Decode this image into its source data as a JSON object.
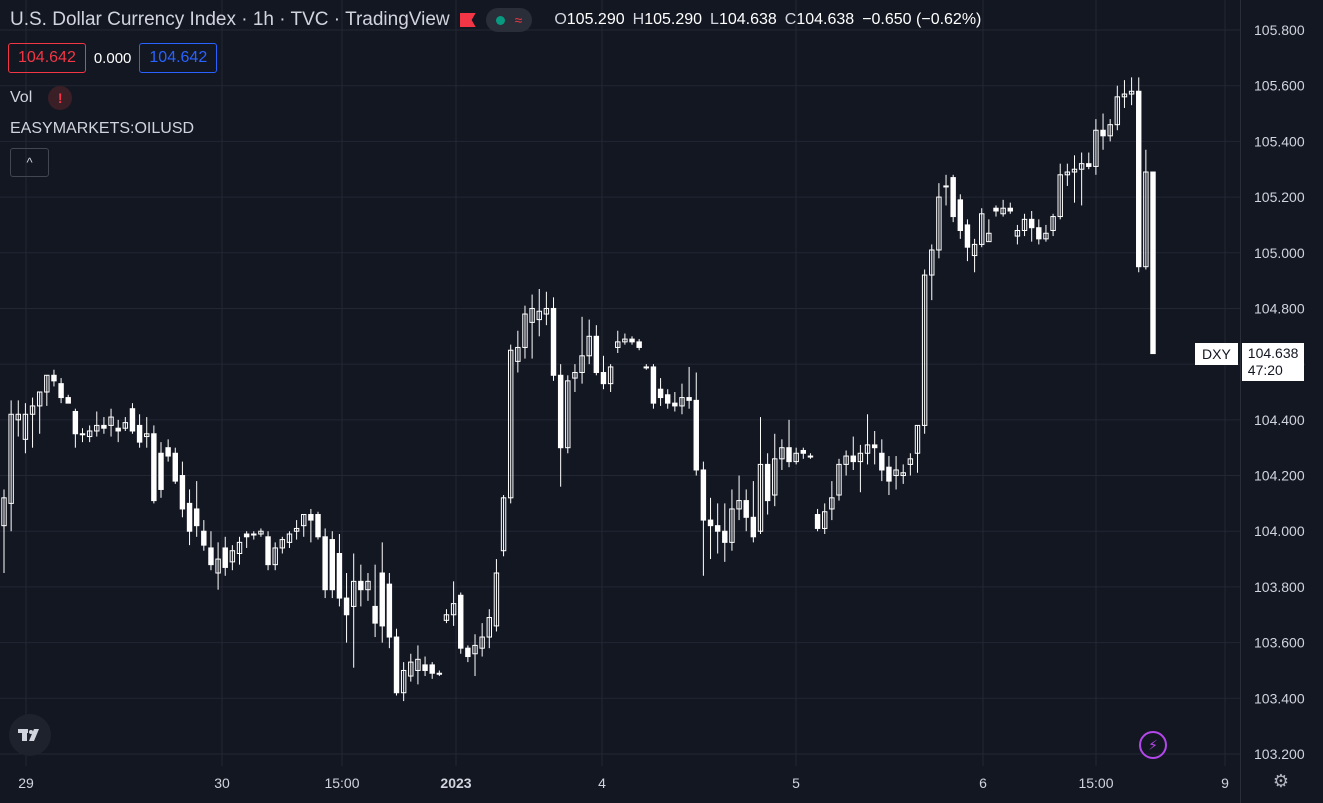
{
  "legend": {
    "title": "U.S. Dollar Currency Index · 1h · TVC · TradingView",
    "open_label": "O",
    "open": "105.290",
    "high_label": "H",
    "high": "105.290",
    "low_label": "L",
    "low": "104.638",
    "close_label": "C",
    "close": "104.638",
    "change": "−0.650 (−0.62%)"
  },
  "quote": {
    "bid": "104.642",
    "spread": "0.000",
    "ask": "104.642"
  },
  "indicators": {
    "volume_label": "Vol",
    "warning_symbol": "!",
    "compare_symbol": "EASYMARKETS:OILUSD",
    "collapse_symbol": "^"
  },
  "price_tag": {
    "symbol": "DXY",
    "price": "104.638",
    "countdown": "47:20"
  },
  "icons": {
    "logo": "tradingview-logo-icon",
    "bolt": "lightning-icon",
    "settings": "gear-icon",
    "flag": "flag-icon"
  },
  "colors": {
    "background": "#131722",
    "up": "#ffffff",
    "down": "#ffffff",
    "bid": "#f23645",
    "ask": "#2962ff",
    "grid": "#232733"
  },
  "chart_data": {
    "type": "candlestick",
    "ylim": [
      103.15,
      105.9
    ],
    "y_ticks": [
      "105.800",
      "105.600",
      "105.400",
      "105.200",
      "105.000",
      "104.800",
      "104.600",
      "104.400",
      "104.200",
      "104.000",
      "103.800",
      "103.600",
      "103.400",
      "103.200"
    ],
    "x_ticks": [
      "29",
      "30",
      "15:00",
      "2023",
      "4",
      "5",
      "6",
      "15:00",
      "9"
    ],
    "candles": [
      {
        "o": 104.02,
        "h": 104.15,
        "l": 103.85,
        "c": 104.12
      },
      {
        "o": 104.1,
        "h": 104.47,
        "l": 104.0,
        "c": 104.42
      },
      {
        "o": 104.4,
        "h": 104.47,
        "l": 104.34,
        "c": 104.42
      },
      {
        "o": 104.33,
        "h": 104.46,
        "l": 104.28,
        "c": 104.42
      },
      {
        "o": 104.42,
        "h": 104.48,
        "l": 104.3,
        "c": 104.45
      },
      {
        "o": 104.45,
        "h": 104.5,
        "l": 104.35,
        "c": 104.5
      },
      {
        "o": 104.5,
        "h": 104.56,
        "l": 104.45,
        "c": 104.56
      },
      {
        "o": 104.56,
        "h": 104.58,
        "l": 104.52,
        "c": 104.54
      },
      {
        "o": 104.53,
        "h": 104.55,
        "l": 104.46,
        "c": 104.48
      },
      {
        "o": 104.48,
        "h": 104.49,
        "l": 104.46,
        "c": 104.46
      },
      {
        "o": 104.43,
        "h": 104.44,
        "l": 104.3,
        "c": 104.35
      },
      {
        "o": 104.35,
        "h": 104.37,
        "l": 104.32,
        "c": 104.35
      },
      {
        "o": 104.34,
        "h": 104.38,
        "l": 104.32,
        "c": 104.36
      },
      {
        "o": 104.36,
        "h": 104.43,
        "l": 104.34,
        "c": 104.38
      },
      {
        "o": 104.38,
        "h": 104.41,
        "l": 104.35,
        "c": 104.37
      },
      {
        "o": 104.38,
        "h": 104.44,
        "l": 104.34,
        "c": 104.41
      },
      {
        "o": 104.37,
        "h": 104.4,
        "l": 104.32,
        "c": 104.36
      },
      {
        "o": 104.37,
        "h": 104.41,
        "l": 104.36,
        "c": 104.39
      },
      {
        "o": 104.44,
        "h": 104.46,
        "l": 104.35,
        "c": 104.36
      },
      {
        "o": 104.38,
        "h": 104.42,
        "l": 104.3,
        "c": 104.32
      },
      {
        "o": 104.34,
        "h": 104.41,
        "l": 104.3,
        "c": 104.35
      },
      {
        "o": 104.35,
        "h": 104.38,
        "l": 104.1,
        "c": 104.11
      },
      {
        "o": 104.28,
        "h": 104.32,
        "l": 104.12,
        "c": 104.15
      },
      {
        "o": 104.3,
        "h": 104.33,
        "l": 104.25,
        "c": 104.27
      },
      {
        "o": 104.28,
        "h": 104.3,
        "l": 104.17,
        "c": 104.18
      },
      {
        "o": 104.2,
        "h": 104.25,
        "l": 104.05,
        "c": 104.08
      },
      {
        "o": 104.1,
        "h": 104.15,
        "l": 103.95,
        "c": 104.0
      },
      {
        "o": 104.08,
        "h": 104.18,
        "l": 103.98,
        "c": 104.02
      },
      {
        "o": 104.0,
        "h": 104.04,
        "l": 103.93,
        "c": 103.95
      },
      {
        "o": 103.94,
        "h": 104.0,
        "l": 103.86,
        "c": 103.88
      },
      {
        "o": 103.85,
        "h": 103.96,
        "l": 103.79,
        "c": 103.9
      },
      {
        "o": 103.94,
        "h": 103.98,
        "l": 103.84,
        "c": 103.87
      },
      {
        "o": 103.89,
        "h": 103.95,
        "l": 103.86,
        "c": 103.93
      },
      {
        "o": 103.92,
        "h": 103.98,
        "l": 103.88,
        "c": 103.96
      },
      {
        "o": 103.99,
        "h": 104.0,
        "l": 103.94,
        "c": 103.98
      },
      {
        "o": 103.99,
        "h": 104.0,
        "l": 103.97,
        "c": 103.99
      },
      {
        "o": 103.99,
        "h": 104.01,
        "l": 103.98,
        "c": 104.0
      },
      {
        "o": 103.98,
        "h": 104.0,
        "l": 103.86,
        "c": 103.88
      },
      {
        "o": 103.88,
        "h": 103.96,
        "l": 103.86,
        "c": 103.94
      },
      {
        "o": 103.94,
        "h": 103.98,
        "l": 103.92,
        "c": 103.97
      },
      {
        "o": 103.96,
        "h": 104.0,
        "l": 103.94,
        "c": 103.99
      },
      {
        "o": 104.0,
        "h": 104.04,
        "l": 103.97,
        "c": 104.01
      },
      {
        "o": 104.02,
        "h": 104.06,
        "l": 103.98,
        "c": 104.06
      },
      {
        "o": 104.06,
        "h": 104.08,
        "l": 103.96,
        "c": 104.04
      },
      {
        "o": 104.06,
        "h": 104.07,
        "l": 103.97,
        "c": 103.98
      },
      {
        "o": 103.98,
        "h": 104.01,
        "l": 103.76,
        "c": 103.79
      },
      {
        "o": 103.97,
        "h": 104.0,
        "l": 103.76,
        "c": 103.79
      },
      {
        "o": 103.92,
        "h": 103.99,
        "l": 103.73,
        "c": 103.76
      },
      {
        "o": 103.76,
        "h": 103.85,
        "l": 103.6,
        "c": 103.7
      },
      {
        "o": 103.73,
        "h": 103.92,
        "l": 103.51,
        "c": 103.82
      },
      {
        "o": 103.82,
        "h": 103.88,
        "l": 103.73,
        "c": 103.79
      },
      {
        "o": 103.79,
        "h": 103.85,
        "l": 103.75,
        "c": 103.82
      },
      {
        "o": 103.73,
        "h": 103.88,
        "l": 103.62,
        "c": 103.67
      },
      {
        "o": 103.85,
        "h": 103.96,
        "l": 103.6,
        "c": 103.66
      },
      {
        "o": 103.81,
        "h": 103.85,
        "l": 103.58,
        "c": 103.62
      },
      {
        "o": 103.62,
        "h": 103.65,
        "l": 103.41,
        "c": 103.42
      },
      {
        "o": 103.42,
        "h": 103.53,
        "l": 103.39,
        "c": 103.5
      },
      {
        "o": 103.48,
        "h": 103.56,
        "l": 103.46,
        "c": 103.53
      },
      {
        "o": 103.5,
        "h": 103.59,
        "l": 103.45,
        "c": 103.54
      },
      {
        "o": 103.52,
        "h": 103.55,
        "l": 103.48,
        "c": 103.5
      },
      {
        "o": 103.52,
        "h": 103.53,
        "l": 103.47,
        "c": 103.49
      },
      {
        "o": 103.49,
        "h": 103.5,
        "l": 103.48,
        "c": 103.49
      },
      {
        "o": 103.68,
        "h": 103.72,
        "l": 103.67,
        "c": 103.7
      },
      {
        "o": 103.7,
        "h": 103.82,
        "l": 103.66,
        "c": 103.74
      },
      {
        "o": 103.77,
        "h": 103.78,
        "l": 103.56,
        "c": 103.58
      },
      {
        "o": 103.58,
        "h": 103.59,
        "l": 103.53,
        "c": 103.55
      },
      {
        "o": 103.56,
        "h": 103.63,
        "l": 103.48,
        "c": 103.59
      },
      {
        "o": 103.58,
        "h": 103.67,
        "l": 103.55,
        "c": 103.62
      },
      {
        "o": 103.62,
        "h": 103.72,
        "l": 103.58,
        "c": 103.69
      },
      {
        "o": 103.66,
        "h": 103.9,
        "l": 103.64,
        "c": 103.85
      },
      {
        "o": 103.93,
        "h": 104.13,
        "l": 103.91,
        "c": 104.12
      },
      {
        "o": 104.12,
        "h": 104.67,
        "l": 104.1,
        "c": 104.65
      },
      {
        "o": 104.61,
        "h": 104.72,
        "l": 104.57,
        "c": 104.66
      },
      {
        "o": 104.66,
        "h": 104.81,
        "l": 104.62,
        "c": 104.78
      },
      {
        "o": 104.75,
        "h": 104.85,
        "l": 104.62,
        "c": 104.8
      },
      {
        "o": 104.76,
        "h": 104.87,
        "l": 104.7,
        "c": 104.79
      },
      {
        "o": 104.78,
        "h": 104.86,
        "l": 104.74,
        "c": 104.8
      },
      {
        "o": 104.8,
        "h": 104.84,
        "l": 104.54,
        "c": 104.56
      },
      {
        "o": 104.56,
        "h": 104.6,
        "l": 104.16,
        "c": 104.3
      },
      {
        "o": 104.3,
        "h": 104.56,
        "l": 104.28,
        "c": 104.54
      },
      {
        "o": 104.55,
        "h": 104.6,
        "l": 104.5,
        "c": 104.57
      },
      {
        "o": 104.57,
        "h": 104.77,
        "l": 104.53,
        "c": 104.63
      },
      {
        "o": 104.63,
        "h": 104.76,
        "l": 104.6,
        "c": 104.7
      },
      {
        "o": 104.7,
        "h": 104.74,
        "l": 104.56,
        "c": 104.57
      },
      {
        "o": 104.57,
        "h": 104.63,
        "l": 104.51,
        "c": 104.53
      },
      {
        "o": 104.53,
        "h": 104.6,
        "l": 104.5,
        "c": 104.59
      },
      {
        "o": 104.66,
        "h": 104.72,
        "l": 104.64,
        "c": 104.68
      },
      {
        "o": 104.68,
        "h": 104.71,
        "l": 104.67,
        "c": 104.69
      },
      {
        "o": 104.69,
        "h": 104.7,
        "l": 104.67,
        "c": 104.68
      },
      {
        "o": 104.68,
        "h": 104.69,
        "l": 104.65,
        "c": 104.66
      },
      {
        "o": 104.59,
        "h": 104.6,
        "l": 104.58,
        "c": 104.59
      },
      {
        "o": 104.59,
        "h": 104.6,
        "l": 104.44,
        "c": 104.46
      },
      {
        "o": 104.51,
        "h": 104.55,
        "l": 104.45,
        "c": 104.48
      },
      {
        "o": 104.49,
        "h": 104.51,
        "l": 104.44,
        "c": 104.46
      },
      {
        "o": 104.46,
        "h": 104.5,
        "l": 104.43,
        "c": 104.45
      },
      {
        "o": 104.45,
        "h": 104.53,
        "l": 104.42,
        "c": 104.48
      },
      {
        "o": 104.48,
        "h": 104.59,
        "l": 104.44,
        "c": 104.47
      },
      {
        "o": 104.47,
        "h": 104.57,
        "l": 104.2,
        "c": 104.22
      },
      {
        "o": 104.22,
        "h": 104.25,
        "l": 103.84,
        "c": 104.04
      },
      {
        "o": 104.04,
        "h": 104.12,
        "l": 103.9,
        "c": 104.02
      },
      {
        "o": 104.02,
        "h": 104.1,
        "l": 103.92,
        "c": 104.0
      },
      {
        "o": 104.0,
        "h": 104.1,
        "l": 103.89,
        "c": 103.96
      },
      {
        "o": 103.96,
        "h": 104.15,
        "l": 103.93,
        "c": 104.08
      },
      {
        "o": 104.08,
        "h": 104.2,
        "l": 104.04,
        "c": 104.11
      },
      {
        "o": 104.11,
        "h": 104.15,
        "l": 104.0,
        "c": 104.05
      },
      {
        "o": 104.05,
        "h": 104.18,
        "l": 103.96,
        "c": 103.98
      },
      {
        "o": 104.0,
        "h": 104.41,
        "l": 103.99,
        "c": 104.24
      },
      {
        "o": 104.24,
        "h": 104.28,
        "l": 104.06,
        "c": 104.11
      },
      {
        "o": 104.13,
        "h": 104.35,
        "l": 104.09,
        "c": 104.26
      },
      {
        "o": 104.26,
        "h": 104.33,
        "l": 104.22,
        "c": 104.3
      },
      {
        "o": 104.3,
        "h": 104.4,
        "l": 104.23,
        "c": 104.25
      },
      {
        "o": 104.25,
        "h": 104.3,
        "l": 104.24,
        "c": 104.28
      },
      {
        "o": 104.29,
        "h": 104.3,
        "l": 104.26,
        "c": 104.28
      },
      {
        "o": 104.27,
        "h": 104.28,
        "l": 104.26,
        "c": 104.27
      },
      {
        "o": 104.06,
        "h": 104.08,
        "l": 104.0,
        "c": 104.01
      },
      {
        "o": 104.01,
        "h": 104.1,
        "l": 103.99,
        "c": 104.07
      },
      {
        "o": 104.08,
        "h": 104.18,
        "l": 104.04,
        "c": 104.12
      },
      {
        "o": 104.13,
        "h": 104.26,
        "l": 104.11,
        "c": 104.24
      },
      {
        "o": 104.24,
        "h": 104.29,
        "l": 104.2,
        "c": 104.27
      },
      {
        "o": 104.27,
        "h": 104.34,
        "l": 104.22,
        "c": 104.25
      },
      {
        "o": 104.25,
        "h": 104.31,
        "l": 104.14,
        "c": 104.28
      },
      {
        "o": 104.28,
        "h": 104.42,
        "l": 104.24,
        "c": 104.31
      },
      {
        "o": 104.31,
        "h": 104.36,
        "l": 104.24,
        "c": 104.3
      },
      {
        "o": 104.28,
        "h": 104.33,
        "l": 104.18,
        "c": 104.22
      },
      {
        "o": 104.23,
        "h": 104.27,
        "l": 104.13,
        "c": 104.18
      },
      {
        "o": 104.2,
        "h": 104.27,
        "l": 104.15,
        "c": 104.22
      },
      {
        "o": 104.2,
        "h": 104.24,
        "l": 104.17,
        "c": 104.21
      },
      {
        "o": 104.24,
        "h": 104.28,
        "l": 104.2,
        "c": 104.26
      },
      {
        "o": 104.28,
        "h": 104.38,
        "l": 104.21,
        "c": 104.38
      },
      {
        "o": 104.38,
        "h": 104.94,
        "l": 104.35,
        "c": 104.92
      },
      {
        "o": 104.92,
        "h": 105.03,
        "l": 104.83,
        "c": 105.01
      },
      {
        "o": 105.01,
        "h": 105.25,
        "l": 104.98,
        "c": 105.2
      },
      {
        "o": 105.24,
        "h": 105.28,
        "l": 105.17,
        "c": 105.24
      },
      {
        "o": 105.27,
        "h": 105.28,
        "l": 105.11,
        "c": 105.13
      },
      {
        "o": 105.19,
        "h": 105.21,
        "l": 105.05,
        "c": 105.08
      },
      {
        "o": 105.1,
        "h": 105.12,
        "l": 104.97,
        "c": 105.02
      },
      {
        "o": 104.99,
        "h": 105.05,
        "l": 104.93,
        "c": 105.03
      },
      {
        "o": 105.03,
        "h": 105.16,
        "l": 105.02,
        "c": 105.14
      },
      {
        "o": 105.04,
        "h": 105.12,
        "l": 105.04,
        "c": 105.07
      },
      {
        "o": 105.16,
        "h": 105.17,
        "l": 105.13,
        "c": 105.15
      },
      {
        "o": 105.14,
        "h": 105.19,
        "l": 105.13,
        "c": 105.16
      },
      {
        "o": 105.16,
        "h": 105.18,
        "l": 105.14,
        "c": 105.15
      },
      {
        "o": 105.06,
        "h": 105.1,
        "l": 105.03,
        "c": 105.08
      },
      {
        "o": 105.08,
        "h": 105.14,
        "l": 105.06,
        "c": 105.12
      },
      {
        "o": 105.12,
        "h": 105.15,
        "l": 105.04,
        "c": 105.09
      },
      {
        "o": 105.09,
        "h": 105.12,
        "l": 105.03,
        "c": 105.05
      },
      {
        "o": 105.05,
        "h": 105.1,
        "l": 105.04,
        "c": 105.07
      },
      {
        "o": 105.08,
        "h": 105.14,
        "l": 105.06,
        "c": 105.13
      },
      {
        "o": 105.13,
        "h": 105.32,
        "l": 105.12,
        "c": 105.28
      },
      {
        "o": 105.28,
        "h": 105.32,
        "l": 105.24,
        "c": 105.29
      },
      {
        "o": 105.29,
        "h": 105.35,
        "l": 105.18,
        "c": 105.3
      },
      {
        "o": 105.3,
        "h": 105.36,
        "l": 105.17,
        "c": 105.32
      },
      {
        "o": 105.32,
        "h": 105.36,
        "l": 105.3,
        "c": 105.31
      },
      {
        "o": 105.31,
        "h": 105.48,
        "l": 105.28,
        "c": 105.44
      },
      {
        "o": 105.44,
        "h": 105.5,
        "l": 105.37,
        "c": 105.42
      },
      {
        "o": 105.42,
        "h": 105.48,
        "l": 105.4,
        "c": 105.46
      },
      {
        "o": 105.46,
        "h": 105.6,
        "l": 105.44,
        "c": 105.56
      },
      {
        "o": 105.56,
        "h": 105.62,
        "l": 105.52,
        "c": 105.57
      },
      {
        "o": 105.57,
        "h": 105.63,
        "l": 105.53,
        "c": 105.58
      },
      {
        "o": 105.58,
        "h": 105.63,
        "l": 104.93,
        "c": 104.95
      },
      {
        "o": 104.95,
        "h": 105.37,
        "l": 104.94,
        "c": 105.29
      },
      {
        "o": 105.29,
        "h": 105.29,
        "l": 104.638,
        "c": 104.638
      }
    ]
  }
}
